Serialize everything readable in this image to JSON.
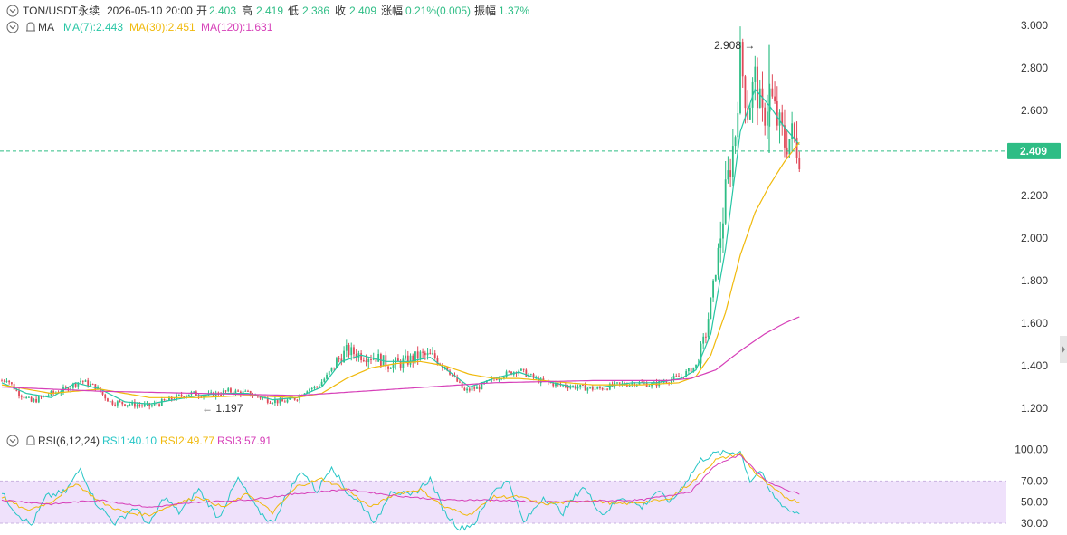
{
  "header": {
    "symbol": "TON/USDT永续",
    "datetime": "2026-05-10 20:00",
    "open_label": "开",
    "open": "2.403",
    "high_label": "高",
    "high": "2.419",
    "low_label": "低",
    "low": "2.386",
    "close_label": "收",
    "close": "2.409",
    "change_label": "涨幅",
    "change": "0.21%(0.005)",
    "amplitude_label": "振幅",
    "amplitude": "1.37%"
  },
  "ma_legend": {
    "label": "MA",
    "ma7": "MA(7):2.443",
    "ma30": "MA(30):2.451",
    "ma120": "MA(120):1.631"
  },
  "rsi_legend": {
    "label": "RSI(6,12,24)",
    "rsi1": "RSI1:40.10",
    "rsi2": "RSI2:49.77",
    "rsi3": "RSI3:57.91"
  },
  "colors": {
    "up": "#2ebd85",
    "down": "#e04a5a",
    "ma7": "#26c6a4",
    "ma30": "#f0b90b",
    "ma120": "#d63fb8",
    "rsi1": "#26c6c6",
    "rsi2": "#f0b90b",
    "rsi3": "#d63fb8",
    "rsi_band": "#efe1fb",
    "price_tag": "#2ebd85"
  },
  "chart_data": {
    "type": "candlestick",
    "price_axis": {
      "ticks": [
        "3.000",
        "2.800",
        "2.600",
        "2.400",
        "2.200",
        "2.000",
        "1.800",
        "1.600",
        "1.400",
        "1.200"
      ],
      "range": [
        1.15,
        3.02
      ]
    },
    "rsi_axis": {
      "ticks": [
        "100.00",
        "70.00",
        "50.00",
        "30.00"
      ],
      "range": [
        25,
        100
      ],
      "band": [
        30,
        70
      ]
    },
    "current_price": "2.409",
    "max_annotation": "2.908",
    "min_annotation": "1.197",
    "series_anchors": {
      "close": [
        [
          0,
          1.33
        ],
        [
          2,
          1.34
        ],
        [
          6,
          1.28
        ],
        [
          12,
          1.23
        ],
        [
          18,
          1.26
        ],
        [
          26,
          1.29
        ],
        [
          32,
          1.33
        ],
        [
          38,
          1.3
        ],
        [
          44,
          1.23
        ],
        [
          52,
          1.22
        ],
        [
          60,
          1.21
        ],
        [
          68,
          1.24
        ],
        [
          76,
          1.27
        ],
        [
          84,
          1.26
        ],
        [
          92,
          1.28
        ],
        [
          100,
          1.27
        ],
        [
          108,
          1.24
        ],
        [
          114,
          1.23
        ],
        [
          120,
          1.25
        ],
        [
          124,
          1.29
        ],
        [
          128,
          1.3
        ],
        [
          132,
          1.35
        ],
        [
          136,
          1.42
        ],
        [
          140,
          1.47
        ],
        [
          146,
          1.45
        ],
        [
          152,
          1.44
        ],
        [
          158,
          1.4
        ],
        [
          164,
          1.42
        ],
        [
          170,
          1.45
        ],
        [
          176,
          1.44
        ],
        [
          180,
          1.4
        ],
        [
          184,
          1.34
        ],
        [
          188,
          1.28
        ],
        [
          194,
          1.3
        ],
        [
          202,
          1.35
        ],
        [
          210,
          1.38
        ],
        [
          218,
          1.33
        ],
        [
          226,
          1.31
        ],
        [
          234,
          1.3
        ],
        [
          242,
          1.29
        ],
        [
          250,
          1.31
        ],
        [
          258,
          1.32
        ],
        [
          264,
          1.31
        ],
        [
          270,
          1.33
        ],
        [
          276,
          1.35
        ],
        [
          282,
          1.4
        ],
        [
          286,
          1.55
        ],
        [
          290,
          1.85
        ],
        [
          294,
          2.2
        ],
        [
          298,
          2.5
        ],
        [
          300,
          2.85
        ],
        [
          303,
          2.6
        ],
        [
          306,
          2.75
        ],
        [
          309,
          2.55
        ],
        [
          312,
          2.68
        ],
        [
          315,
          2.55
        ],
        [
          318,
          2.45
        ],
        [
          321,
          2.48
        ],
        [
          324,
          2.41
        ]
      ],
      "ma7": [
        [
          0,
          1.32
        ],
        [
          10,
          1.27
        ],
        [
          20,
          1.25
        ],
        [
          30,
          1.32
        ],
        [
          40,
          1.29
        ],
        [
          50,
          1.23
        ],
        [
          60,
          1.22
        ],
        [
          70,
          1.24
        ],
        [
          80,
          1.26
        ],
        [
          90,
          1.27
        ],
        [
          100,
          1.27
        ],
        [
          110,
          1.24
        ],
        [
          120,
          1.25
        ],
        [
          130,
          1.3
        ],
        [
          138,
          1.42
        ],
        [
          146,
          1.45
        ],
        [
          156,
          1.42
        ],
        [
          166,
          1.42
        ],
        [
          174,
          1.44
        ],
        [
          182,
          1.37
        ],
        [
          190,
          1.3
        ],
        [
          200,
          1.34
        ],
        [
          210,
          1.37
        ],
        [
          220,
          1.33
        ],
        [
          232,
          1.3
        ],
        [
          244,
          1.3
        ],
        [
          256,
          1.32
        ],
        [
          266,
          1.32
        ],
        [
          276,
          1.34
        ],
        [
          282,
          1.38
        ],
        [
          288,
          1.55
        ],
        [
          294,
          1.95
        ],
        [
          300,
          2.5
        ],
        [
          306,
          2.7
        ],
        [
          312,
          2.62
        ],
        [
          318,
          2.52
        ],
        [
          324,
          2.44
        ]
      ],
      "ma30": [
        [
          0,
          1.31
        ],
        [
          20,
          1.27
        ],
        [
          40,
          1.29
        ],
        [
          60,
          1.25
        ],
        [
          80,
          1.25
        ],
        [
          100,
          1.26
        ],
        [
          120,
          1.25
        ],
        [
          130,
          1.27
        ],
        [
          140,
          1.34
        ],
        [
          150,
          1.39
        ],
        [
          160,
          1.41
        ],
        [
          170,
          1.42
        ],
        [
          180,
          1.4
        ],
        [
          190,
          1.36
        ],
        [
          200,
          1.34
        ],
        [
          210,
          1.34
        ],
        [
          220,
          1.33
        ],
        [
          240,
          1.31
        ],
        [
          260,
          1.31
        ],
        [
          275,
          1.32
        ],
        [
          282,
          1.35
        ],
        [
          288,
          1.45
        ],
        [
          294,
          1.65
        ],
        [
          300,
          1.92
        ],
        [
          306,
          2.12
        ],
        [
          312,
          2.25
        ],
        [
          318,
          2.36
        ],
        [
          324,
          2.45
        ]
      ],
      "ma120": [
        [
          0,
          1.3
        ],
        [
          40,
          1.28
        ],
        [
          80,
          1.27
        ],
        [
          120,
          1.26
        ],
        [
          160,
          1.29
        ],
        [
          200,
          1.32
        ],
        [
          240,
          1.33
        ],
        [
          270,
          1.33
        ],
        [
          280,
          1.34
        ],
        [
          290,
          1.38
        ],
        [
          300,
          1.47
        ],
        [
          310,
          1.55
        ],
        [
          318,
          1.6
        ],
        [
          324,
          1.63
        ]
      ],
      "rsi1": [
        [
          0,
          58
        ],
        [
          6,
          40
        ],
        [
          12,
          28
        ],
        [
          18,
          55
        ],
        [
          26,
          60
        ],
        [
          32,
          82
        ],
        [
          38,
          50
        ],
        [
          46,
          30
        ],
        [
          54,
          45
        ],
        [
          60,
          28
        ],
        [
          66,
          55
        ],
        [
          72,
          40
        ],
        [
          80,
          62
        ],
        [
          88,
          35
        ],
        [
          96,
          72
        ],
        [
          104,
          42
        ],
        [
          110,
          30
        ],
        [
          116,
          58
        ],
        [
          122,
          80
        ],
        [
          128,
          60
        ],
        [
          134,
          85
        ],
        [
          140,
          60
        ],
        [
          146,
          48
        ],
        [
          152,
          30
        ],
        [
          158,
          62
        ],
        [
          166,
          55
        ],
        [
          174,
          72
        ],
        [
          180,
          40
        ],
        [
          186,
          25
        ],
        [
          192,
          30
        ],
        [
          200,
          62
        ],
        [
          206,
          70
        ],
        [
          212,
          30
        ],
        [
          220,
          55
        ],
        [
          228,
          40
        ],
        [
          236,
          65
        ],
        [
          244,
          38
        ],
        [
          252,
          55
        ],
        [
          260,
          45
        ],
        [
          266,
          60
        ],
        [
          272,
          50
        ],
        [
          278,
          70
        ],
        [
          284,
          90
        ],
        [
          290,
          96
        ],
        [
          296,
          97
        ],
        [
          300,
          98
        ],
        [
          304,
          70
        ],
        [
          308,
          80
        ],
        [
          312,
          60
        ],
        [
          316,
          50
        ],
        [
          320,
          42
        ],
        [
          324,
          40
        ]
      ],
      "rsi2": [
        [
          0,
          55
        ],
        [
          10,
          42
        ],
        [
          20,
          50
        ],
        [
          30,
          68
        ],
        [
          40,
          50
        ],
        [
          50,
          40
        ],
        [
          60,
          38
        ],
        [
          70,
          48
        ],
        [
          80,
          55
        ],
        [
          90,
          45
        ],
        [
          100,
          58
        ],
        [
          110,
          40
        ],
        [
          120,
          65
        ],
        [
          130,
          72
        ],
        [
          140,
          62
        ],
        [
          150,
          45
        ],
        [
          160,
          58
        ],
        [
          170,
          62
        ],
        [
          180,
          45
        ],
        [
          190,
          38
        ],
        [
          200,
          55
        ],
        [
          210,
          55
        ],
        [
          220,
          48
        ],
        [
          230,
          50
        ],
        [
          240,
          52
        ],
        [
          250,
          48
        ],
        [
          260,
          50
        ],
        [
          270,
          52
        ],
        [
          280,
          68
        ],
        [
          290,
          90
        ],
        [
          300,
          96
        ],
        [
          306,
          78
        ],
        [
          312,
          65
        ],
        [
          318,
          55
        ],
        [
          324,
          50
        ]
      ],
      "rsi3": [
        [
          0,
          52
        ],
        [
          20,
          48
        ],
        [
          40,
          52
        ],
        [
          60,
          45
        ],
        [
          80,
          50
        ],
        [
          100,
          52
        ],
        [
          120,
          58
        ],
        [
          140,
          62
        ],
        [
          160,
          56
        ],
        [
          180,
          52
        ],
        [
          200,
          52
        ],
        [
          220,
          50
        ],
        [
          240,
          51
        ],
        [
          260,
          52
        ],
        [
          280,
          60
        ],
        [
          290,
          85
        ],
        [
          300,
          95
        ],
        [
          306,
          80
        ],
        [
          312,
          68
        ],
        [
          318,
          62
        ],
        [
          324,
          58
        ]
      ]
    }
  }
}
